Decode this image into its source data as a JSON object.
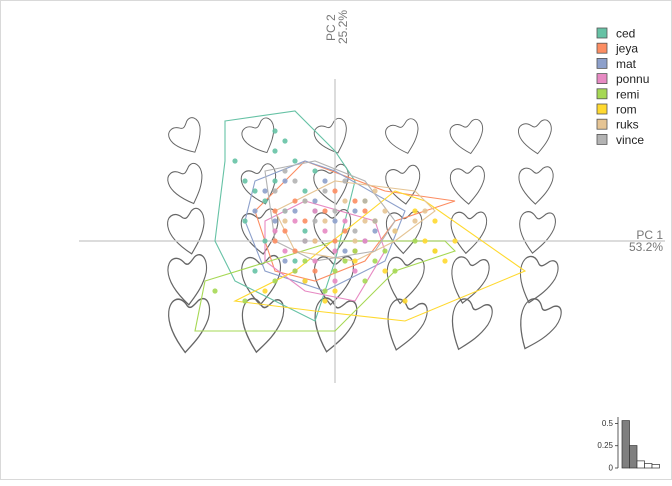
{
  "chart_data": {
    "type": "scatter",
    "title": "",
    "x_axis": {
      "label": "PC 1",
      "variance": "53.2%"
    },
    "y_axis": {
      "label": "PC 2",
      "variance": "25.2%"
    },
    "xlim": [
      -0.3,
      0.3
    ],
    "ylim": [
      -0.18,
      0.2
    ],
    "legend_position": "top-right",
    "series": [
      {
        "name": "ced",
        "color": "#66c2a5",
        "hull": [
          [
            -0.11,
            0.12
          ],
          [
            -0.04,
            0.13
          ],
          [
            0,
            0.09
          ],
          [
            0.02,
            0.06
          ],
          [
            0,
            -0.02
          ],
          [
            -0.02,
            -0.08
          ],
          [
            -0.1,
            -0.04
          ],
          [
            -0.12,
            0.0
          ],
          [
            -0.11,
            0.08
          ]
        ],
        "points": [
          [
            -0.1,
            0.08
          ],
          [
            -0.08,
            0.05
          ],
          [
            -0.07,
            0.04
          ],
          [
            -0.06,
            0.09
          ],
          [
            -0.05,
            0.1
          ],
          [
            -0.04,
            0.08
          ],
          [
            -0.03,
            0.05
          ],
          [
            -0.02,
            0.07
          ],
          [
            -0.09,
            0.02
          ],
          [
            -0.06,
            0.06
          ],
          [
            -0.05,
            0.03
          ],
          [
            -0.03,
            0.01
          ],
          [
            -0.07,
            0.0
          ],
          [
            -0.04,
            -0.02
          ],
          [
            -0.08,
            -0.03
          ],
          [
            -0.02,
            0.03
          ],
          [
            -0.06,
            0.11
          ],
          [
            -0.09,
            0.06
          ]
        ]
      },
      {
        "name": "jeya",
        "color": "#fc8d62",
        "hull": [
          [
            -0.08,
            0.03
          ],
          [
            -0.03,
            0.08
          ],
          [
            0.05,
            0.05
          ],
          [
            0.12,
            0.04
          ],
          [
            0.06,
            0.02
          ],
          [
            0.03,
            -0.02
          ],
          [
            -0.02,
            -0.04
          ],
          [
            -0.06,
            -0.03
          ]
        ],
        "points": [
          [
            -0.06,
            0.03
          ],
          [
            -0.05,
            0.01
          ],
          [
            -0.04,
            0.04
          ],
          [
            -0.03,
            0.02
          ],
          [
            -0.02,
            0.0
          ],
          [
            -0.01,
            0.03
          ],
          [
            0.0,
            0.05
          ],
          [
            0.01,
            0.01
          ],
          [
            0.02,
            -0.01
          ],
          [
            0.03,
            0.03
          ],
          [
            -0.04,
            -0.01
          ],
          [
            -0.02,
            -0.03
          ],
          [
            0.0,
            0.0
          ],
          [
            0.04,
            0.02
          ],
          [
            -0.06,
            0.0
          ],
          [
            0.02,
            0.04
          ]
        ]
      },
      {
        "name": "mat",
        "color": "#8da0cb",
        "hull": [
          [
            -0.08,
            0.06
          ],
          [
            -0.03,
            0.08
          ],
          [
            0.0,
            0.07
          ],
          [
            0.07,
            0.03
          ],
          [
            0.05,
            -0.02
          ],
          [
            -0.01,
            -0.05
          ],
          [
            -0.07,
            -0.03
          ],
          [
            -0.09,
            0.02
          ]
        ],
        "points": [
          [
            -0.07,
            0.05
          ],
          [
            -0.06,
            0.02
          ],
          [
            -0.05,
            0.06
          ],
          [
            -0.04,
            0.03
          ],
          [
            -0.03,
            0.0
          ],
          [
            -0.02,
            0.04
          ],
          [
            -0.01,
            0.06
          ],
          [
            0.0,
            0.02
          ],
          [
            0.01,
            -0.01
          ],
          [
            0.02,
            0.03
          ],
          [
            0.03,
            0.0
          ],
          [
            -0.05,
            -0.02
          ],
          [
            -0.03,
            -0.04
          ],
          [
            0.04,
            0.01
          ],
          [
            -0.08,
            0.03
          ]
        ]
      },
      {
        "name": "ponnu",
        "color": "#e78ac3",
        "hull": [
          [
            -0.07,
            0.02
          ],
          [
            -0.03,
            0.04
          ],
          [
            0.04,
            0.02
          ],
          [
            0.05,
            -0.01
          ],
          [
            0.02,
            -0.06
          ],
          [
            -0.03,
            -0.05
          ],
          [
            -0.07,
            -0.02
          ]
        ],
        "points": [
          [
            -0.06,
            0.01
          ],
          [
            -0.05,
            -0.01
          ],
          [
            -0.04,
            0.02
          ],
          [
            -0.03,
            0.0
          ],
          [
            -0.02,
            -0.02
          ],
          [
            -0.01,
            0.01
          ],
          [
            0.0,
            -0.01
          ],
          [
            0.01,
            0.02
          ],
          [
            0.02,
            -0.03
          ],
          [
            0.03,
            0.0
          ],
          [
            -0.04,
            -0.03
          ],
          [
            0.0,
            -0.04
          ],
          [
            -0.02,
            0.03
          ]
        ]
      },
      {
        "name": "remi",
        "color": "#a6d854",
        "hull": [
          [
            -0.14,
            -0.09
          ],
          [
            -0.13,
            -0.04
          ],
          [
            0.0,
            0.0
          ],
          [
            0.11,
            0.0
          ],
          [
            0.12,
            -0.01
          ],
          [
            0.06,
            -0.03
          ],
          [
            0.0,
            -0.09
          ]
        ],
        "points": [
          [
            -0.12,
            -0.05
          ],
          [
            -0.09,
            -0.06
          ],
          [
            -0.06,
            -0.04
          ],
          [
            -0.03,
            -0.02
          ],
          [
            0.0,
            -0.03
          ],
          [
            0.02,
            -0.01
          ],
          [
            0.04,
            -0.02
          ],
          [
            0.06,
            -0.03
          ],
          [
            0.08,
            0.0
          ],
          [
            0.1,
            -0.01
          ],
          [
            -0.01,
            -0.05
          ],
          [
            0.01,
            -0.02
          ],
          [
            0.03,
            -0.04
          ],
          [
            -0.04,
            -0.03
          ],
          [
            0.05,
            -0.01
          ]
        ]
      },
      {
        "name": "rom",
        "color": "#ffd92f",
        "hull": [
          [
            -0.1,
            -0.06
          ],
          [
            -0.04,
            -0.03
          ],
          [
            0.06,
            0.05
          ],
          [
            0.09,
            0.04
          ],
          [
            0.19,
            -0.03
          ],
          [
            0.07,
            -0.08
          ],
          [
            -0.02,
            -0.07
          ]
        ],
        "points": [
          [
            -0.07,
            -0.05
          ],
          [
            -0.03,
            -0.04
          ],
          [
            0.0,
            -0.05
          ],
          [
            0.02,
            -0.02
          ],
          [
            0.04,
            0.02
          ],
          [
            0.06,
            0.01
          ],
          [
            0.08,
            0.03
          ],
          [
            0.09,
            0.0
          ],
          [
            0.1,
            -0.01
          ],
          [
            0.11,
            -0.02
          ],
          [
            0.12,
            0.0
          ],
          [
            0.07,
            -0.06
          ],
          [
            0.03,
            0.04
          ],
          [
            0.05,
            -0.03
          ],
          [
            0.1,
            0.02
          ],
          [
            -0.01,
            -0.06
          ]
        ]
      },
      {
        "name": "ruks",
        "color": "#e5c494",
        "hull": [
          [
            -0.06,
            0.03
          ],
          [
            0.0,
            0.06
          ],
          [
            0.08,
            0.05
          ],
          [
            0.1,
            0.03
          ],
          [
            0.06,
            0.0
          ],
          [
            0.02,
            -0.02
          ],
          [
            -0.04,
            -0.01
          ]
        ],
        "points": [
          [
            -0.05,
            0.02
          ],
          [
            -0.03,
            0.04
          ],
          [
            -0.01,
            0.02
          ],
          [
            0.01,
            0.04
          ],
          [
            0.03,
            0.02
          ],
          [
            0.05,
            0.03
          ],
          [
            0.06,
            0.01
          ],
          [
            0.08,
            0.02
          ],
          [
            0.09,
            0.03
          ],
          [
            0.02,
            0.0
          ],
          [
            -0.02,
            0.0
          ],
          [
            0.04,
            0.05
          ]
        ]
      },
      {
        "name": "vince",
        "color": "#b3b3b3",
        "hull": [
          [
            -0.07,
            0.07
          ],
          [
            -0.02,
            0.08
          ],
          [
            0.03,
            0.06
          ],
          [
            0.06,
            0.02
          ],
          [
            0.04,
            -0.01
          ],
          [
            -0.02,
            -0.02
          ],
          [
            -0.06,
            0.0
          ]
        ],
        "points": [
          [
            -0.06,
            0.05
          ],
          [
            -0.05,
            0.03
          ],
          [
            -0.04,
            0.06
          ],
          [
            -0.03,
            0.04
          ],
          [
            -0.02,
            0.02
          ],
          [
            -0.01,
            0.05
          ],
          [
            0.0,
            0.03
          ],
          [
            0.01,
            0.06
          ],
          [
            0.02,
            0.01
          ],
          [
            0.03,
            0.04
          ],
          [
            -0.03,
            0.0
          ],
          [
            0.04,
            0.02
          ],
          [
            -0.05,
            0.07
          ]
        ]
      }
    ],
    "scree": {
      "ticks": [
        "0.5",
        "0.25",
        "0"
      ],
      "ylim": [
        0,
        0.55
      ],
      "values": [
        0.532,
        0.252,
        0.08,
        0.05,
        0.04
      ]
    }
  }
}
